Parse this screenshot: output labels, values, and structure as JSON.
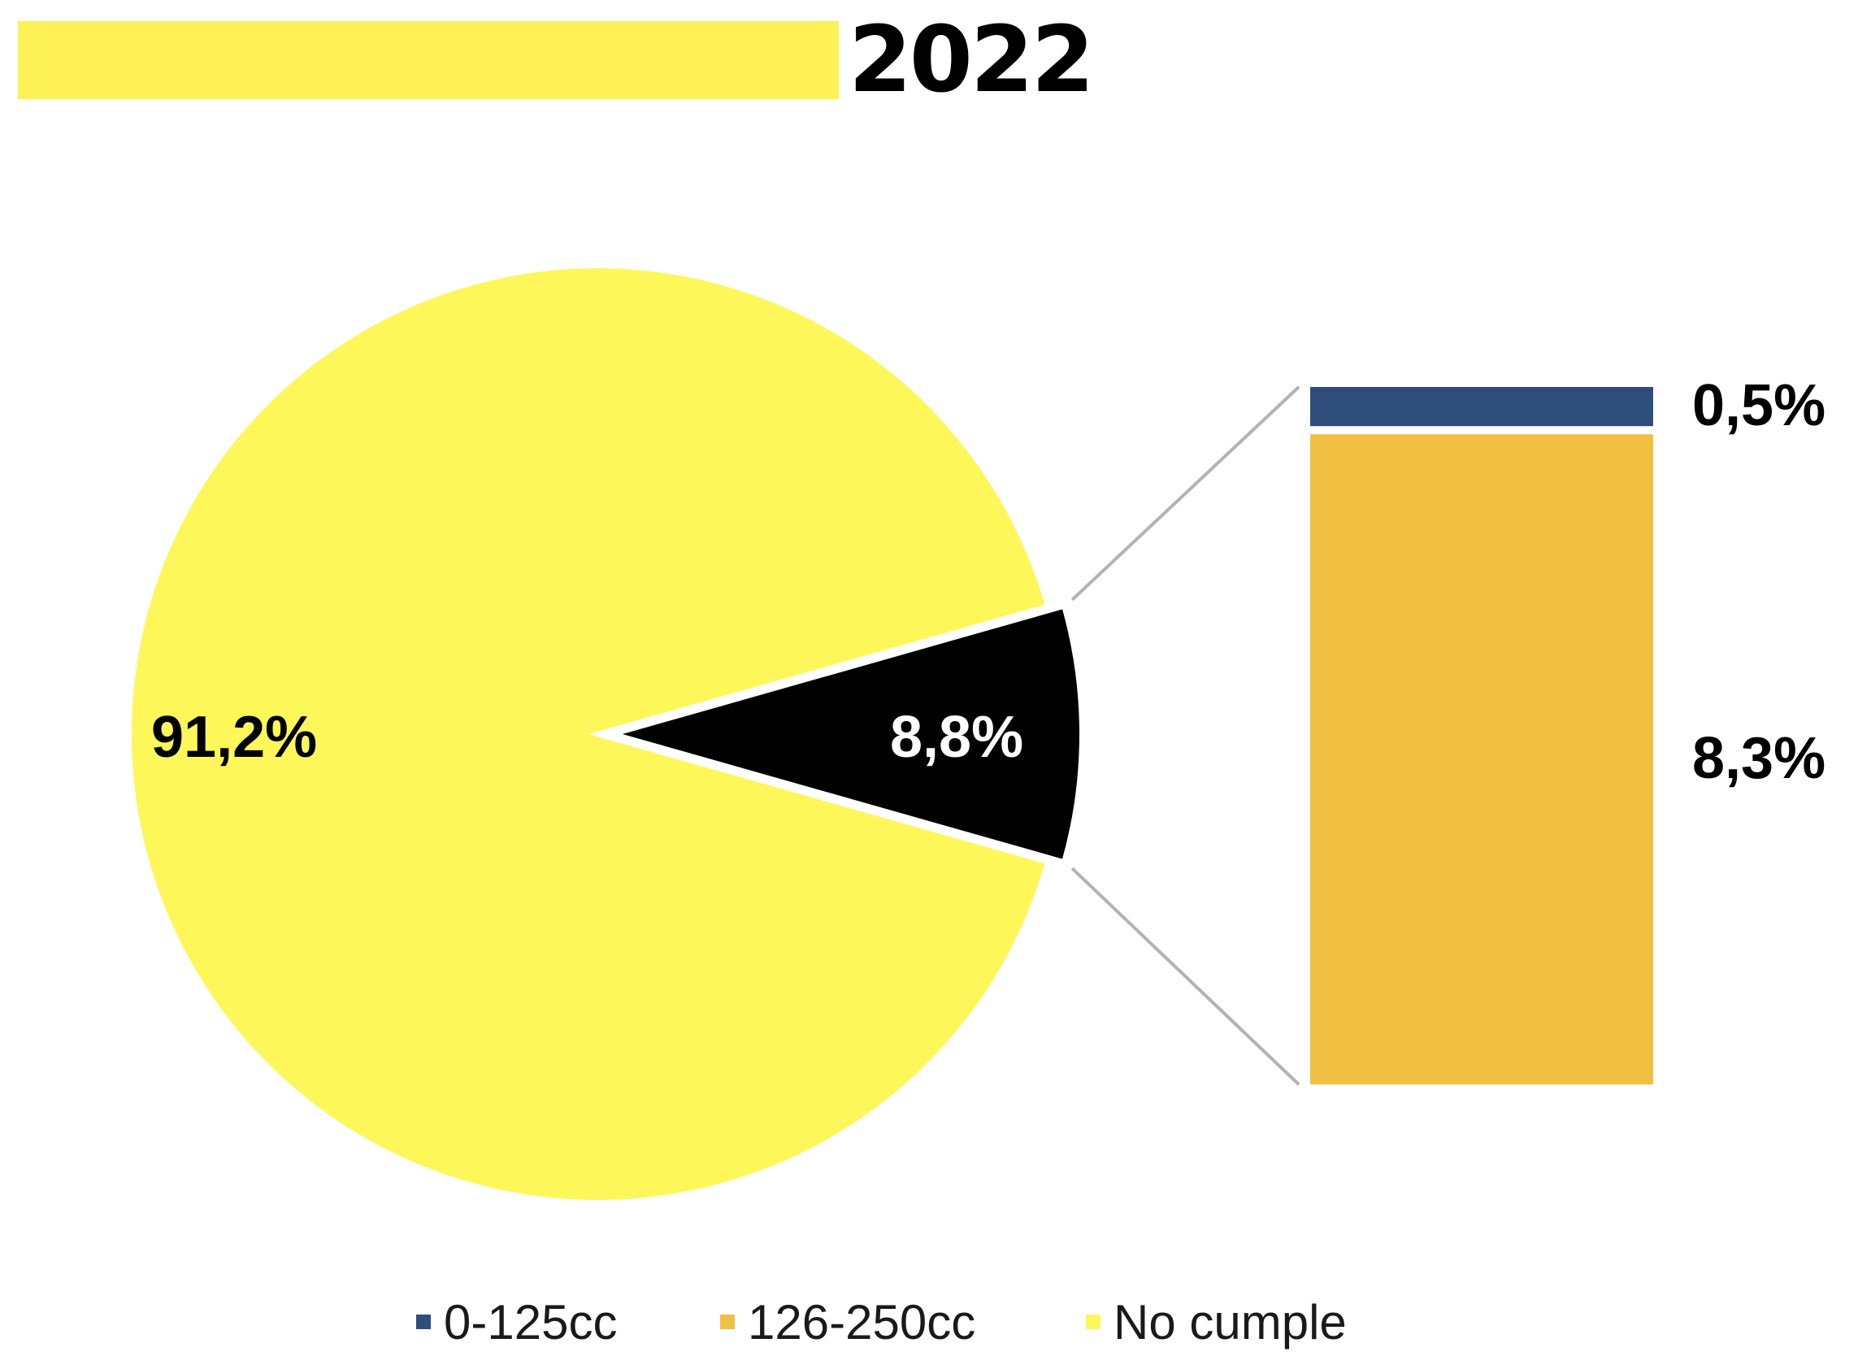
{
  "title": "2022",
  "colors": {
    "accent_bar": "#fdf156",
    "no_cumple": "#fdf75a",
    "highlight_slice": "#000000",
    "range_0_125": "#2e4d7b",
    "range_126_250": "#f1c043",
    "connector": "#b3b3b3"
  },
  "chart_data": {
    "type": "bar-of-pie",
    "title": "2022",
    "pie": {
      "slices": [
        {
          "label": "No cumple",
          "value": 91.2,
          "display": "91,2%",
          "color": "#fdf75a"
        },
        {
          "label": "",
          "value": 8.8,
          "display": "8,8%",
          "color": "#000000",
          "exploded": true
        }
      ]
    },
    "bar": {
      "segments": [
        {
          "label": "0-125cc",
          "value": 0.5,
          "display": "0,5%",
          "color": "#2e4d7b"
        },
        {
          "label": "126-250cc",
          "value": 8.3,
          "display": "8,3%",
          "color": "#f1c043"
        }
      ]
    },
    "legend": {
      "position": "bottom",
      "entries": [
        {
          "label": "0-125cc",
          "color": "#2e4d7b"
        },
        {
          "label": "126-250cc",
          "color": "#f1c043"
        },
        {
          "label": "No cumple",
          "color": "#fdf75a"
        }
      ]
    }
  }
}
